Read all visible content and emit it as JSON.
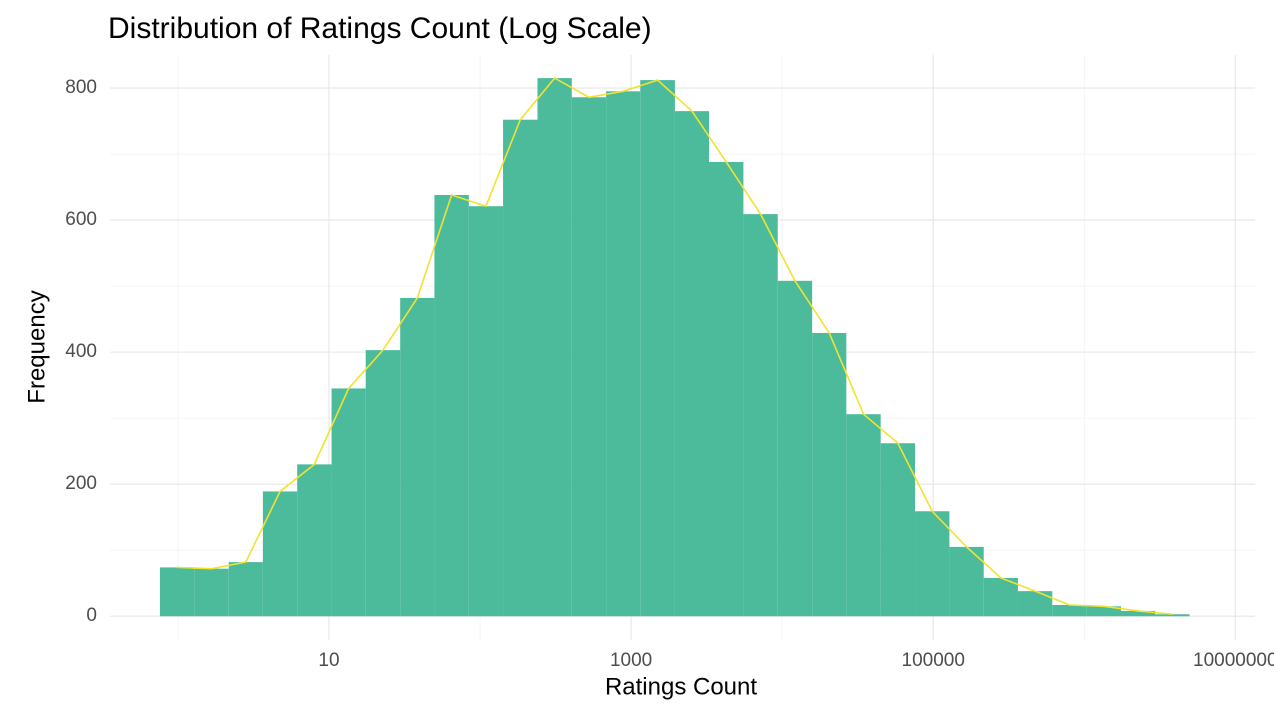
{
  "chart_data": {
    "type": "histogram",
    "title": "Distribution of Ratings Count (Log Scale)",
    "x_label": "Ratings Count",
    "y_label": "Frequency",
    "x_log": true,
    "bins": [
      0.76,
      1.28,
      2.17,
      3.65,
      6.16,
      10.4,
      17.5,
      29.6,
      49.9,
      84.3,
      142,
      240,
      405,
      683,
      1150,
      1950,
      3280,
      5540,
      9350,
      15800,
      26600,
      44900,
      75800,
      128000,
      216000,
      364000,
      614000,
      1040000,
      1750000,
      2950000,
      4980000
    ],
    "values": [
      74,
      72,
      82,
      189,
      230,
      345,
      403,
      482,
      638,
      621,
      752,
      815,
      786,
      795,
      812,
      765,
      688,
      609,
      508,
      429,
      306,
      262,
      159,
      105,
      58,
      38,
      17,
      15,
      8,
      3
    ],
    "color": "#4cbb9c",
    "line_color": "#f2e230",
    "xlim": [
      0.355,
      13500000
    ],
    "xticks": [
      10,
      1000,
      100000,
      10000000
    ],
    "x_minor_ticks": [
      1,
      100,
      10000,
      1000000
    ],
    "ylim": [
      -36,
      850
    ],
    "yticks": [
      0,
      200,
      400,
      600,
      800
    ],
    "y_minor_ticks": [
      100,
      300,
      500,
      700
    ],
    "grid": true
  }
}
